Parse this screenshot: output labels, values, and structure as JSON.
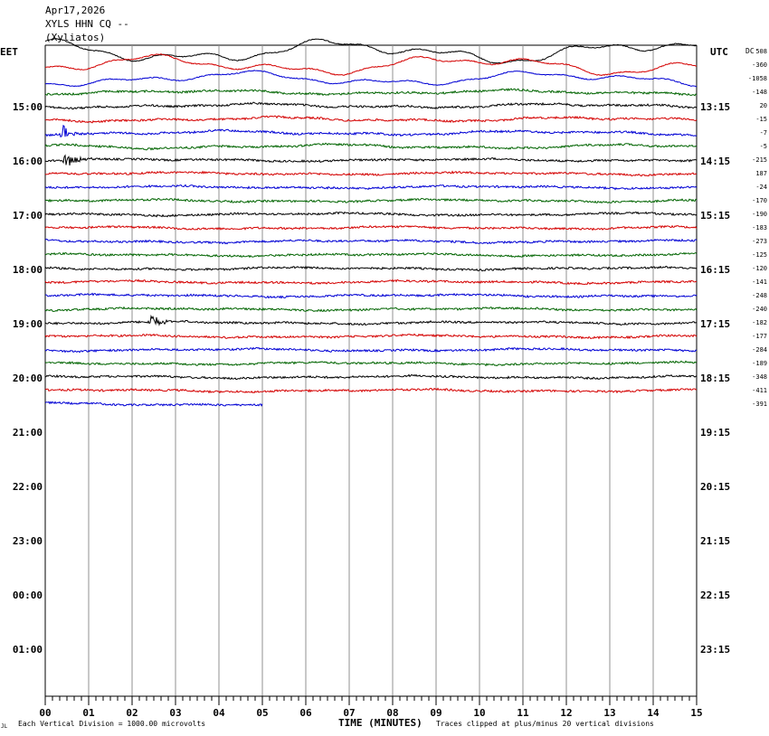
{
  "header": {
    "date": "Apr17,2026",
    "station": "XYLS HHN CQ --",
    "location": "(Xyliatos)"
  },
  "left_tz": "EET",
  "right_tz": "UTC",
  "dc_label": "DC",
  "footer": {
    "left_mark": "JL",
    "vertical_division": "Each Vertical Division = 1000.00 microvolts",
    "xaxis_title": "TIME (MINUTES)",
    "clip_note": "Traces clipped at plus/minus 20 vertical divisions"
  },
  "chart_data": {
    "type": "line",
    "xlabel": "TIME (MINUTES)",
    "xlim": [
      0,
      15
    ],
    "x_ticks": [
      "00",
      "01",
      "02",
      "03",
      "04",
      "05",
      "06",
      "07",
      "08",
      "09",
      "10",
      "11",
      "12",
      "13",
      "14",
      "15"
    ],
    "left_hour_labels": [
      "15:00",
      "16:00",
      "17:00",
      "18:00",
      "19:00",
      "20:00",
      "21:00",
      "22:00",
      "23:00",
      "00:00",
      "01:00"
    ],
    "right_hour_labels": [
      "13:15",
      "14:15",
      "15:15",
      "16:15",
      "17:15",
      "18:15",
      "19:15",
      "20:15",
      "21:15",
      "22:15",
      "23:15"
    ],
    "trace_colors": [
      "#000000",
      "#d40000",
      "#0000d4",
      "#006400"
    ],
    "dc_offsets": [
      "508",
      "-360",
      "-1058",
      "-148",
      "20",
      "-15",
      "-7",
      "-5",
      "-215",
      "187",
      "-24",
      "-170",
      "-190",
      "-183",
      "-273",
      "-125",
      "-120",
      "-141",
      "-248",
      "-240",
      "-182",
      "-177",
      "-284",
      "-189",
      "-348",
      "-411",
      "-391"
    ],
    "trace_count": 27,
    "last_trace_end_minute": 5.0,
    "events": [
      {
        "trace_index": 6,
        "minute": 0.4,
        "note": "local event"
      },
      {
        "trace_index": 8,
        "minute": 0.45,
        "note": "local event"
      },
      {
        "trace_index": 20,
        "minute": 2.4,
        "note": "small event"
      }
    ]
  }
}
